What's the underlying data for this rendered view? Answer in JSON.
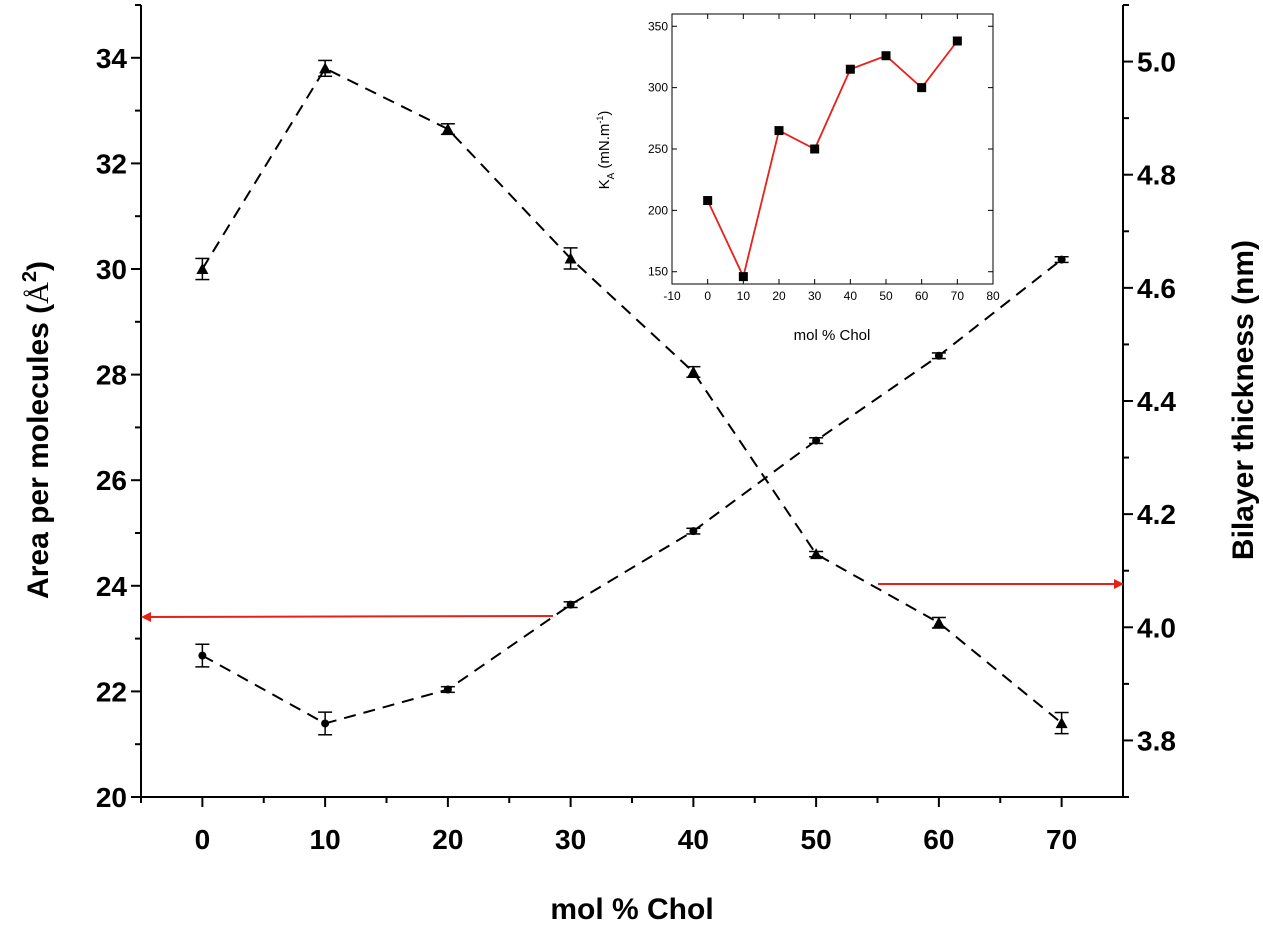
{
  "chart_data": [
    {
      "type": "line",
      "name": "main",
      "xlabel": "mol % Chol",
      "ylabel_left": "Area per molecules (Å²)",
      "ylabel_left_text": "Area per molecules (",
      "ylabel_left_unit": "Å",
      "ylabel_left_sup": "2",
      "ylabel_left_close": ")",
      "ylabel_right": "Bilayer thickness (nm)",
      "xlim": [
        -5,
        75
      ],
      "ylim_left": [
        20,
        35
      ],
      "ylim_right": [
        3.7,
        5.1
      ],
      "x_ticks": [
        "0",
        "10",
        "20",
        "30",
        "40",
        "50",
        "60",
        "70"
      ],
      "y_left_ticks": [
        "20",
        "22",
        "24",
        "26",
        "28",
        "30",
        "32",
        "34"
      ],
      "y_right_ticks": [
        "3.8",
        "4.0",
        "4.2",
        "4.4",
        "4.6",
        "4.8",
        "5.0"
      ],
      "series": [
        {
          "name": "Area per molecule",
          "axis": "left",
          "marker": "triangle",
          "x": [
            0,
            10,
            20,
            30,
            40,
            50,
            60,
            70
          ],
          "values": [
            30.0,
            33.8,
            32.65,
            30.2,
            28.05,
            24.6,
            23.3,
            21.4
          ],
          "errors": [
            0.2,
            0.15,
            0.1,
            0.2,
            0.1,
            0.05,
            0.1,
            0.2
          ]
        },
        {
          "name": "Bilayer thickness",
          "axis": "right",
          "marker": "circle",
          "x": [
            0,
            10,
            20,
            30,
            40,
            50,
            60,
            70
          ],
          "values": [
            3.95,
            3.83,
            3.89,
            4.04,
            4.17,
            4.33,
            4.48,
            4.65
          ],
          "errors": [
            0.02,
            0.02,
            0.005,
            0.005,
            0.005,
            0.005,
            0.005,
            0.005
          ]
        }
      ],
      "arrows": [
        {
          "points_to": "left axis",
          "color": "#e8201a"
        },
        {
          "points_to": "right axis",
          "color": "#e8201a"
        }
      ]
    },
    {
      "type": "line",
      "name": "inset",
      "xlabel": "mol % Chol",
      "ylabel_main": "K",
      "ylabel_sub": "A",
      "ylabel_unit": " (mN.m",
      "ylabel_sup": "-1",
      "ylabel_close": ")",
      "xlim": [
        -10,
        80
      ],
      "ylim": [
        140,
        360
      ],
      "x_ticks": [
        "-10",
        "0",
        "10",
        "20",
        "30",
        "40",
        "50",
        "60",
        "70",
        "80"
      ],
      "y_ticks": [
        "150",
        "200",
        "250",
        "300",
        "350"
      ],
      "series": [
        {
          "name": "KA",
          "color": "#e8201a",
          "marker": "square",
          "x": [
            0,
            10,
            20,
            30,
            40,
            50,
            60,
            70
          ],
          "values": [
            208,
            146,
            265,
            250,
            315,
            326,
            300,
            338
          ]
        }
      ]
    }
  ]
}
